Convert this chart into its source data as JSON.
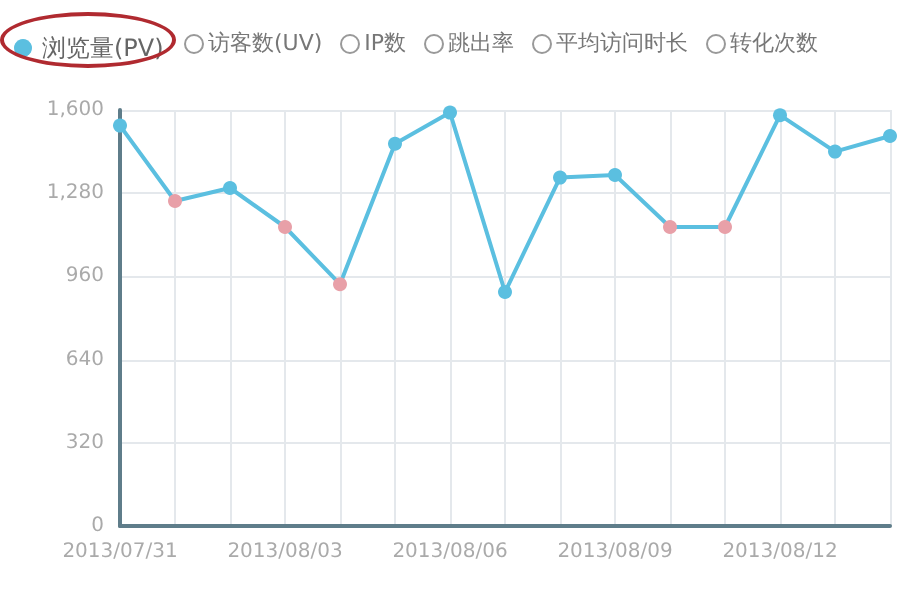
{
  "chart_data": {
    "type": "line",
    "categories": [
      "2013/07/31",
      null,
      null,
      "2013/08/03",
      null,
      null,
      "2013/08/06",
      null,
      null,
      "2013/08/09",
      null,
      null,
      "2013/08/12",
      null,
      null
    ],
    "series": [
      {
        "name": "浏览量(PV)",
        "color": "#5bbfe0",
        "colors": [
          "#5bbfe0",
          "#e8a0a8",
          "#5bbfe0",
          "#e8a0a8",
          "#e8a0a8",
          "#5bbfe0",
          "#5bbfe0",
          "#5bbfe0",
          "#5bbfe0",
          "#5bbfe0",
          "#e8a0a8",
          "#e8a0a8",
          "#5bbfe0",
          "#5bbfe0",
          "#5bbfe0"
        ],
        "values": [
          1540,
          1250,
          1300,
          1150,
          930,
          1470,
          1590,
          900,
          1340,
          1350,
          1150,
          1150,
          1580,
          1440,
          1500
        ]
      }
    ],
    "annotations": [
      "访客数(UV)",
      "IP数",
      "跳出率",
      "平均访问时长",
      "转化次数"
    ],
    "ylim": [
      0,
      1600
    ],
    "yticks": [
      0,
      320,
      640,
      960,
      {
        "value": 1280,
        "label": "1,280"
      },
      {
        "value": 1600,
        "label": "1,600"
      }
    ],
    "grid": true,
    "legend": "top left",
    "marker": "circle",
    "line_style": "solid"
  }
}
